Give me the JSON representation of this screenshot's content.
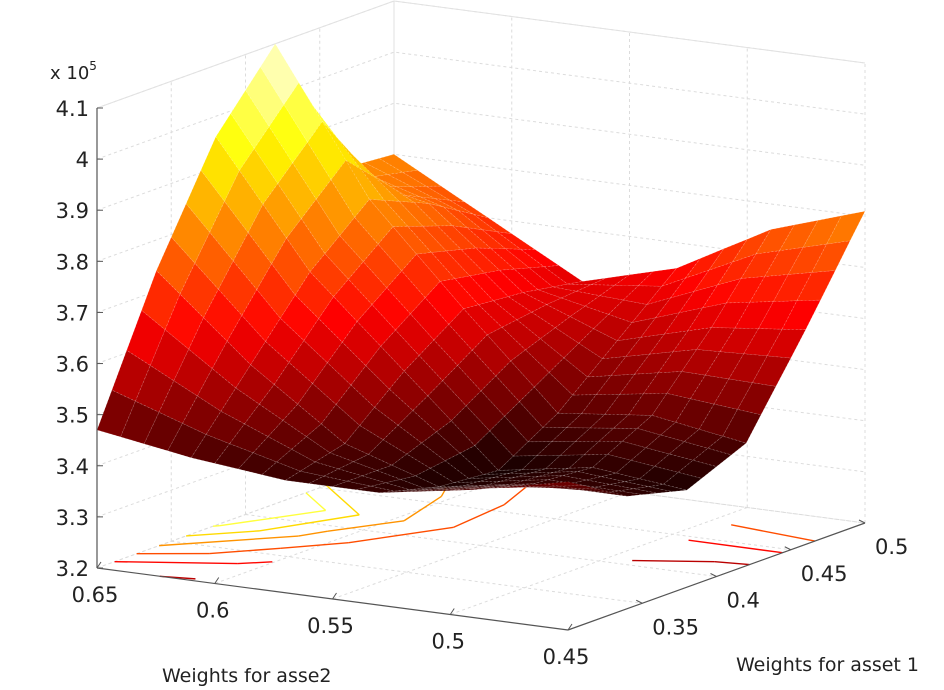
{
  "chart_data": {
    "type": "surface",
    "title": "",
    "xlabel": "Weights for asset 1",
    "ylabel": "Weights for asse2",
    "zlabel": "",
    "z_multiplier": "x 10",
    "z_multiplier_exp": "5",
    "xlim": [
      0.3,
      0.5
    ],
    "ylim": [
      0.45,
      0.65
    ],
    "zlim": [
      3.2,
      4.1
    ],
    "x_ticks": [
      "0.35",
      "0.4",
      "0.45",
      "0.5"
    ],
    "y_ticks": [
      "0.45",
      "0.5",
      "0.55",
      "0.6",
      "0.65"
    ],
    "z_ticks": [
      "3.2",
      "3.3",
      "3.4",
      "3.5",
      "3.6",
      "3.7",
      "3.8",
      "3.9",
      "4",
      "4.1"
    ],
    "colormap": "hot",
    "grid": true,
    "contour_on_floor": true,
    "x": [
      0.3,
      0.34,
      0.38,
      0.42,
      0.46,
      0.5
    ],
    "y": [
      0.65,
      0.61,
      0.57,
      0.53,
      0.49,
      0.45
    ],
    "z": [
      [
        3.47,
        3.74,
        3.96,
        4.1,
        3.81,
        3.8
      ],
      [
        3.44,
        3.58,
        3.72,
        3.82,
        3.77,
        3.7
      ],
      [
        3.42,
        3.45,
        3.55,
        3.63,
        3.62,
        3.6
      ],
      [
        3.42,
        3.39,
        3.38,
        3.45,
        3.55,
        3.65
      ],
      [
        3.45,
        3.42,
        3.41,
        3.47,
        3.6,
        3.75
      ],
      [
        3.49,
        3.42,
        3.39,
        3.44,
        3.62,
        3.81
      ]
    ]
  }
}
